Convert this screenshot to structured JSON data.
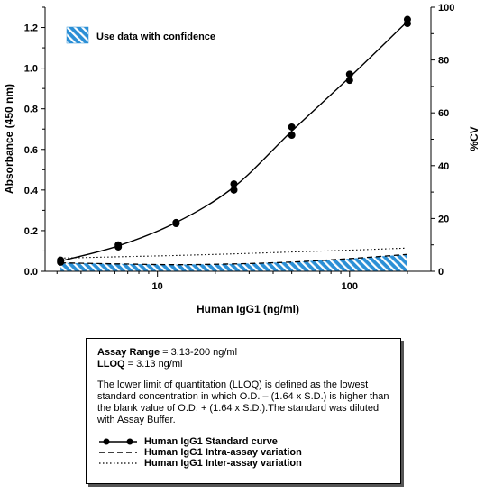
{
  "chart_data": {
    "type": "line",
    "x_scale": "log",
    "xlabel": "Human IgG1 (ng/ml)",
    "ylabel": "Absorbance (450 nm)",
    "y2label": "%CV",
    "x_ticks": [
      10,
      100
    ],
    "y_ticks": [
      "0.0",
      "0.2",
      "0.4",
      "0.6",
      "0.8",
      "1.0",
      "1.2"
    ],
    "y2_ticks": [
      "0",
      "20",
      "40",
      "60",
      "80",
      "100"
    ],
    "xlim": [
      2.6,
      265
    ],
    "ylim": [
      0,
      1.3
    ],
    "y2lim": [
      0,
      100
    ],
    "grid": false,
    "legend_box_label": "Use data with confidence",
    "points": [
      {
        "x": 3.13,
        "y": 0.055
      },
      {
        "x": 3.13,
        "y": 0.045
      },
      {
        "x": 6.25,
        "y": 0.13
      },
      {
        "x": 6.25,
        "y": 0.12
      },
      {
        "x": 12.5,
        "y": 0.24
      },
      {
        "x": 12.5,
        "y": 0.235
      },
      {
        "x": 25,
        "y": 0.43
      },
      {
        "x": 25,
        "y": 0.4
      },
      {
        "x": 50,
        "y": 0.71
      },
      {
        "x": 50,
        "y": 0.67
      },
      {
        "x": 100,
        "y": 0.97
      },
      {
        "x": 100,
        "y": 0.94
      },
      {
        "x": 200,
        "y": 1.24
      },
      {
        "x": 200,
        "y": 1.22
      }
    ],
    "series": [
      {
        "name": "Human IgG1 Standard curve",
        "style": "solid",
        "x": [
          3.13,
          6.25,
          12.5,
          25,
          50,
          100,
          200
        ],
        "values": [
          0.05,
          0.125,
          0.24,
          0.415,
          0.69,
          0.955,
          1.23
        ]
      },
      {
        "name": "Human IgG1 Intra-assay variation",
        "style": "dashed",
        "axis": "%CV",
        "x": [
          3.13,
          6.25,
          12.5,
          25,
          50,
          100,
          200
        ],
        "values": [
          3.2,
          2.8,
          2.5,
          2.8,
          3.5,
          4.8,
          6.4
        ]
      },
      {
        "name": "Human IgG1 Inter-assay variation",
        "style": "dotted",
        "axis": "%CV",
        "x": [
          3.13,
          6.25,
          12.5,
          25,
          50,
          100,
          200
        ],
        "values": [
          5.0,
          5.5,
          6.0,
          6.6,
          7.3,
          8.0,
          8.8
        ]
      }
    ],
    "confidence_region": {
      "x_from": 3.13,
      "x_to": 200,
      "axis": "%CV",
      "upper": [
        3.2,
        2.8,
        2.5,
        2.8,
        3.5,
        4.8,
        6.4
      ]
    },
    "colors": {
      "confidence_fill": "#2b8fd6",
      "stripe": "#ffffff",
      "line": "#000000"
    }
  },
  "info": {
    "range_label": "Assay Range",
    "range_value": " = 3.13-200 ng/ml",
    "lloq_label": "LLOQ",
    "lloq_value": " = 3.13 ng/ml",
    "description": "The lower limit of quantitation (LLOQ) is defined as the lowest standard concentration in which O.D. – (1.64 x S.D.) is higher than the blank value of O.D. + (1.64 x S.D.).The standard was diluted with Assay Buffer.",
    "legend": [
      "Human IgG1 Standard curve",
      "Human IgG1 Intra-assay variation",
      "Human IgG1 Inter-assay variation"
    ]
  }
}
